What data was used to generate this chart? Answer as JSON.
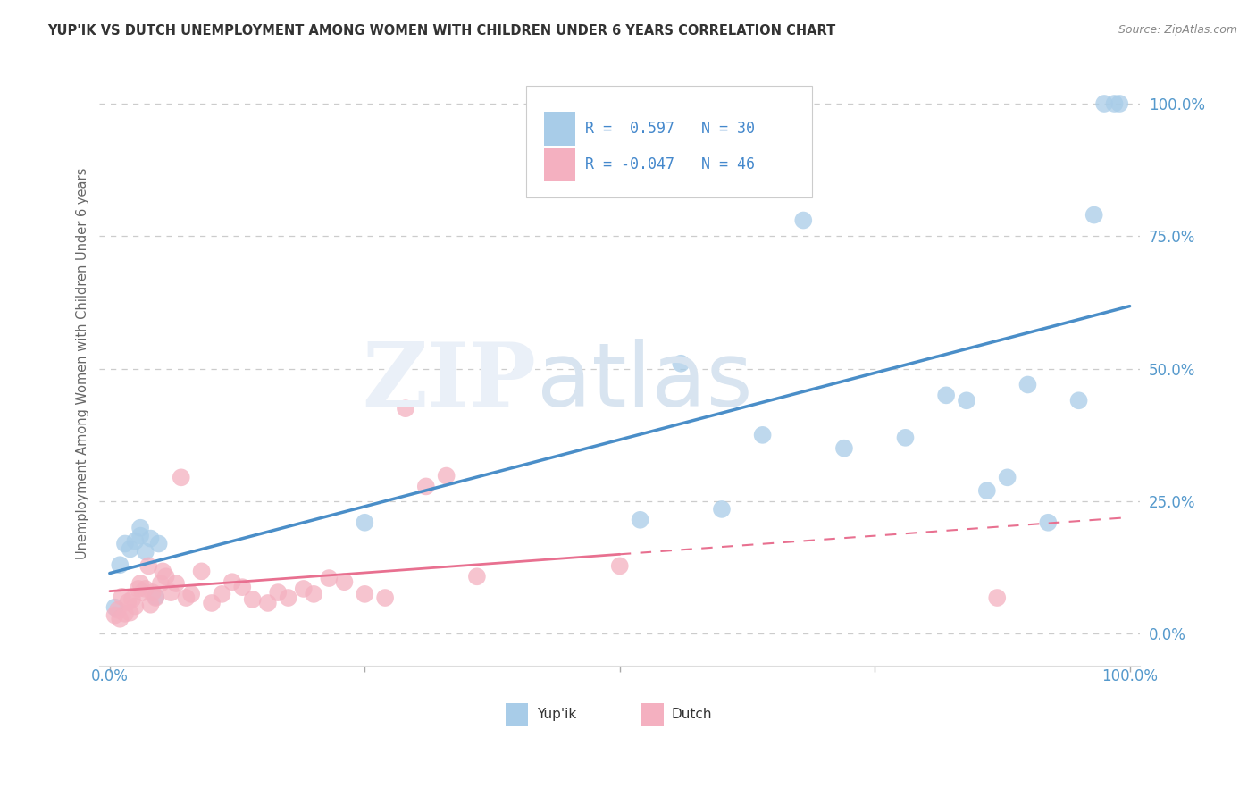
{
  "title": "YUP'IK VS DUTCH UNEMPLOYMENT AMONG WOMEN WITH CHILDREN UNDER 6 YEARS CORRELATION CHART",
  "source": "Source: ZipAtlas.com",
  "ylabel": "Unemployment Among Women with Children Under 6 years",
  "ytick_labels": [
    "0.0%",
    "25.0%",
    "50.0%",
    "75.0%",
    "100.0%"
  ],
  "ytick_values": [
    0.0,
    0.25,
    0.5,
    0.75,
    1.0
  ],
  "legend_label1": "Yup'ik",
  "legend_label2": "Dutch",
  "R_yupik": 0.597,
  "N_yupik": 30,
  "R_dutch": -0.047,
  "N_dutch": 46,
  "color_yupik": "#A8CCE8",
  "color_dutch": "#F4B0C0",
  "color_yupik_line": "#4A8EC8",
  "color_dutch_line": "#E87090",
  "background_color": "#FFFFFF",
  "yupik_x": [
    0.005,
    0.01,
    0.015,
    0.02,
    0.025,
    0.03,
    0.03,
    0.035,
    0.04,
    0.045,
    0.048,
    0.25,
    0.52,
    0.56,
    0.6,
    0.64,
    0.68,
    0.72,
    0.78,
    0.82,
    0.84,
    0.86,
    0.88,
    0.9,
    0.92,
    0.95,
    0.965,
    0.975,
    0.985,
    0.99
  ],
  "yupik_y": [
    0.05,
    0.13,
    0.17,
    0.16,
    0.175,
    0.185,
    0.2,
    0.155,
    0.18,
    0.07,
    0.17,
    0.21,
    0.215,
    0.51,
    0.235,
    0.375,
    0.78,
    0.35,
    0.37,
    0.45,
    0.44,
    0.27,
    0.295,
    0.47,
    0.21,
    0.44,
    0.79,
    1.0,
    1.0,
    1.0
  ],
  "dutch_x": [
    0.005,
    0.008,
    0.01,
    0.012,
    0.015,
    0.018,
    0.02,
    0.022,
    0.025,
    0.028,
    0.03,
    0.032,
    0.035,
    0.038,
    0.04,
    0.042,
    0.045,
    0.05,
    0.052,
    0.055,
    0.06,
    0.065,
    0.07,
    0.075,
    0.08,
    0.09,
    0.1,
    0.11,
    0.12,
    0.13,
    0.14,
    0.155,
    0.165,
    0.175,
    0.19,
    0.2,
    0.215,
    0.23,
    0.25,
    0.27,
    0.29,
    0.31,
    0.33,
    0.36,
    0.5,
    0.87
  ],
  "dutch_y": [
    0.035,
    0.045,
    0.028,
    0.07,
    0.038,
    0.06,
    0.04,
    0.065,
    0.052,
    0.085,
    0.095,
    0.078,
    0.085,
    0.128,
    0.055,
    0.078,
    0.068,
    0.095,
    0.118,
    0.108,
    0.078,
    0.095,
    0.295,
    0.068,
    0.075,
    0.118,
    0.058,
    0.075,
    0.098,
    0.088,
    0.065,
    0.058,
    0.078,
    0.068,
    0.085,
    0.075,
    0.105,
    0.098,
    0.075,
    0.068,
    0.425,
    0.278,
    0.298,
    0.108,
    0.128,
    0.068
  ]
}
